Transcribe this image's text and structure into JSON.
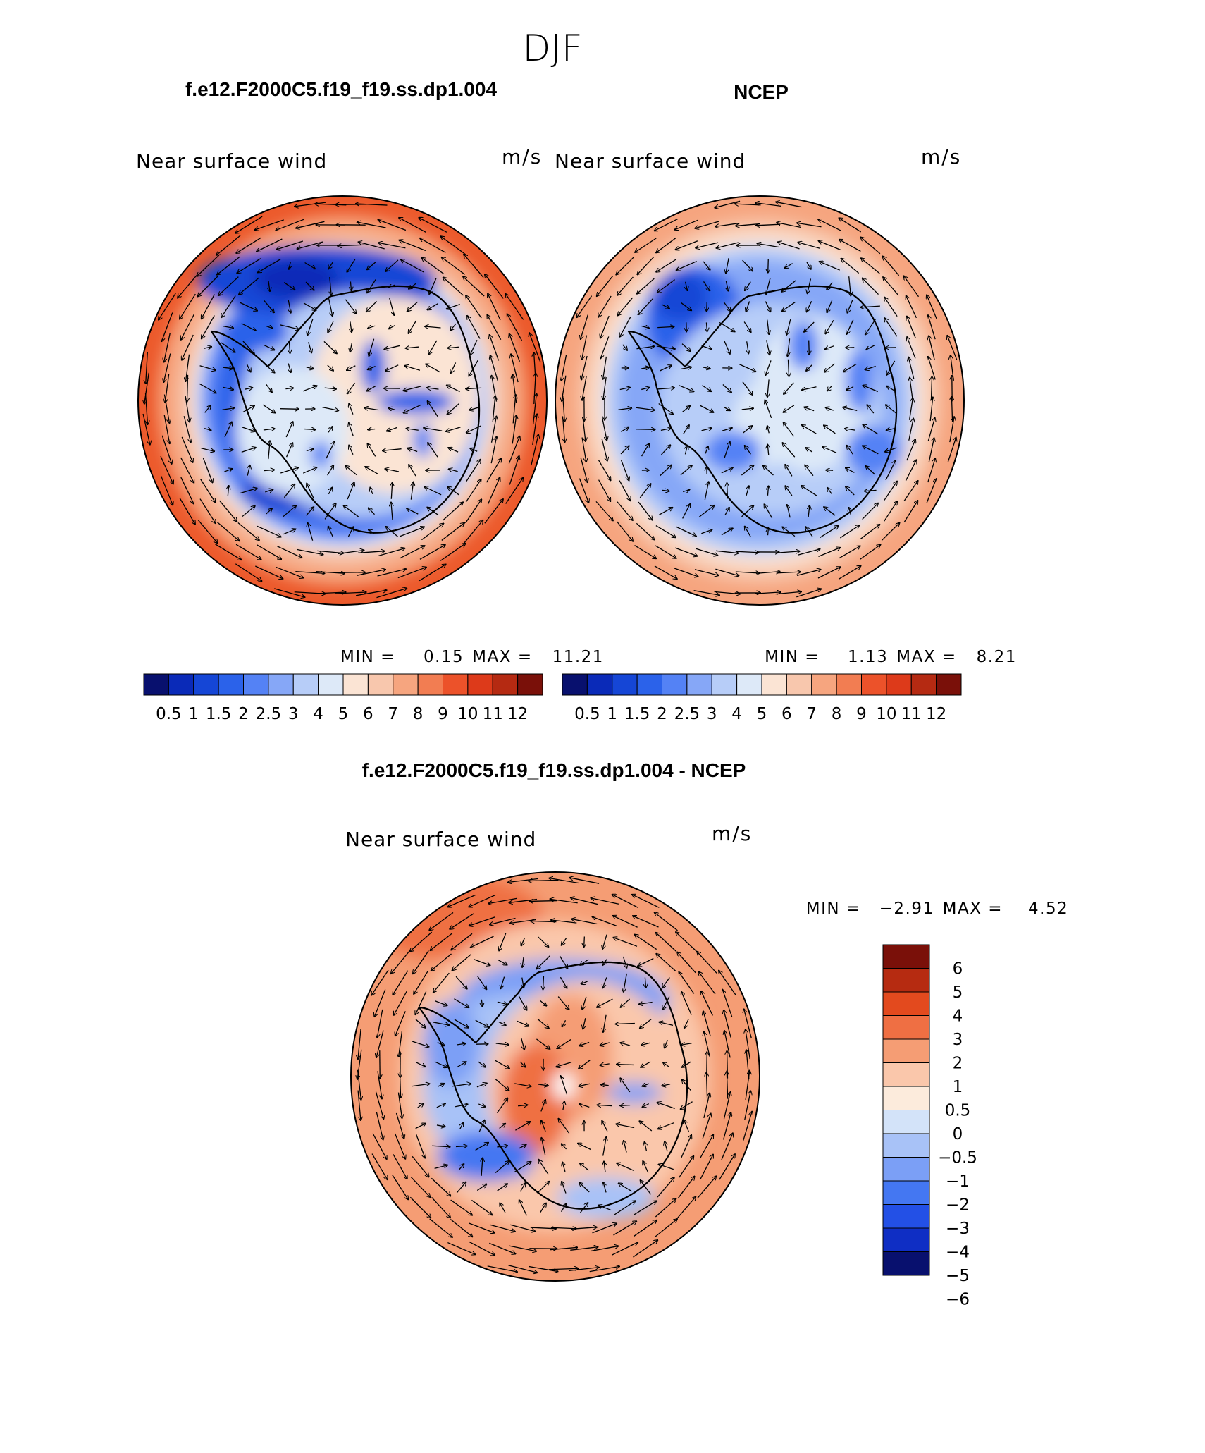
{
  "figure": {
    "season": "DJF",
    "colors": {
      "seq": [
        "#08106e",
        "#0a2ab8",
        "#1546d6",
        "#2b62ea",
        "#5482f5",
        "#86a7f7",
        "#b7cdf8",
        "#dde9f8",
        "#fbe4d4",
        "#f8c7ad",
        "#f6a57f",
        "#f27d52",
        "#ec522a",
        "#dd3a1a",
        "#b52a12",
        "#7a1009"
      ],
      "div": [
        "#08106e",
        "#0f2ec4",
        "#2350e6",
        "#4477f2",
        "#7b9ff6",
        "#a8c2f7",
        "#d3e3f9",
        "#fcebdc",
        "#fac7ab",
        "#f59d74",
        "#ef6f43",
        "#e34a1e",
        "#b62b11",
        "#7a1009"
      ]
    }
  },
  "panels": [
    {
      "title": "f.e12.F2000C5.f19_f19.ss.dp1.004",
      "subtitle": "Near surface wind",
      "units": "m/s",
      "min_label": "MIN =",
      "min_value": "0.15",
      "max_label": "MAX =",
      "max_value": "11.21",
      "colorbar_ticks": [
        "0.5",
        "1",
        "1.5",
        "2",
        "2.5",
        "3",
        "4",
        "5",
        "6",
        "7",
        "8",
        "9",
        "10",
        "11",
        "12"
      ]
    },
    {
      "title": "NCEP",
      "subtitle": "Near surface wind",
      "units": "m/s",
      "min_label": "MIN =",
      "min_value": "1.13",
      "max_label": "MAX =",
      "max_value": "8.21",
      "colorbar_ticks": [
        "0.5",
        "1",
        "1.5",
        "2",
        "2.5",
        "3",
        "4",
        "5",
        "6",
        "7",
        "8",
        "9",
        "10",
        "11",
        "12"
      ]
    },
    {
      "title": "f.e12.F2000C5.f19_f19.ss.dp1.004 - NCEP",
      "subtitle": "Near surface wind",
      "units": "m/s",
      "min_label": "MIN =",
      "min_value": "−2.91",
      "max_label": "MAX =",
      "max_value": "4.52",
      "colorbar_ticks": [
        "6",
        "5",
        "4",
        "3",
        "2",
        "1",
        "0.5",
        "0",
        "−0.5",
        "−1",
        "−2",
        "−3",
        "−4",
        "−5",
        "−6"
      ]
    }
  ]
}
